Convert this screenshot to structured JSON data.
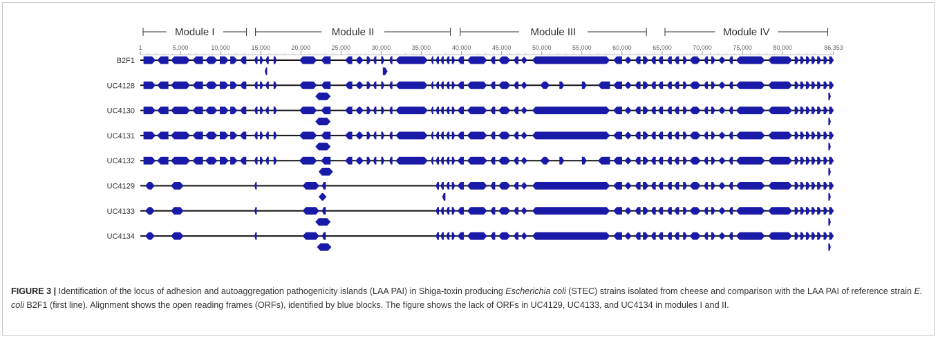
{
  "diagram": {
    "modules": [
      {
        "label": "Module I",
        "start": 1,
        "end": 13400
      },
      {
        "label": "Module II",
        "start": 14000,
        "end": 38800
      },
      {
        "label": "Module III",
        "start": 39500,
        "end": 63200
      },
      {
        "label": "Module IV",
        "start": 65000,
        "end": 85800
      }
    ],
    "axis": {
      "min": 1,
      "max": 86353,
      "ticks": [
        {
          "value": 1,
          "label": "1"
        },
        {
          "value": 5000,
          "label": "5,000"
        },
        {
          "value": 10000,
          "label": "10,000"
        },
        {
          "value": 15000,
          "label": "15,000"
        },
        {
          "value": 20000,
          "label": "20,000"
        },
        {
          "value": 25000,
          "label": "25,000"
        },
        {
          "value": 30000,
          "label": "30,000"
        },
        {
          "value": 35000,
          "label": "35,000"
        },
        {
          "value": 40000,
          "label": "40,000"
        },
        {
          "value": 45000,
          "label": "45,000"
        },
        {
          "value": 50000,
          "label": "50,000"
        },
        {
          "value": 55000,
          "label": "55,000"
        },
        {
          "value": 60000,
          "label": "60,000"
        },
        {
          "value": 65000,
          "label": "65,000"
        },
        {
          "value": 70000,
          "label": "70,000"
        },
        {
          "value": 75000,
          "label": "75,000"
        },
        {
          "value": 80000,
          "label": "80,000"
        },
        {
          "value": 86353,
          "label": "86,353"
        }
      ]
    },
    "orf_color": "#1a1aa8",
    "line_color": "#111111",
    "strains": [
      {
        "name": "B2F1",
        "line_start": 1,
        "mod1": "full",
        "mod2": "full",
        "gap_mod3": false,
        "extra": [
          [
            15500,
            15800,
            "l"
          ],
          [
            30200,
            30800,
            "r"
          ]
        ]
      },
      {
        "name": "UC4128",
        "line_start": 1,
        "mod1": "full",
        "mod2": "full",
        "gap_mod3": true,
        "extra": [
          [
            21800,
            23700,
            "b"
          ],
          [
            85700,
            86000,
            "r"
          ]
        ]
      },
      {
        "name": "UC4130",
        "line_start": 1,
        "mod1": "full",
        "mod2": "full",
        "gap_mod3": false,
        "extra": [
          [
            21800,
            23700,
            "b"
          ],
          [
            85700,
            86000,
            "r"
          ]
        ]
      },
      {
        "name": "UC4131",
        "line_start": 1,
        "mod1": "full",
        "mod2": "full",
        "gap_mod3": false,
        "extra": [
          [
            21800,
            23700,
            "b"
          ],
          [
            85700,
            86000,
            "r"
          ]
        ]
      },
      {
        "name": "UC4132",
        "line_start": 1,
        "mod1": "full",
        "mod2": "full",
        "gap_mod3": true,
        "extra": [
          [
            22200,
            24000,
            "b"
          ],
          [
            85700,
            86000,
            "r"
          ]
        ]
      },
      {
        "name": "UC4129",
        "line_start": 1,
        "mod1": "sparse",
        "mod2": "sparse",
        "gap_mod3": false,
        "extra": [
          [
            22200,
            23200,
            "b"
          ],
          [
            37600,
            38000,
            "l"
          ],
          [
            85700,
            86000,
            "r"
          ]
        ]
      },
      {
        "name": "UC4133",
        "line_start": 1,
        "mod1": "sparse",
        "mod2": "sparse",
        "gap_mod3": false,
        "extra": [
          [
            21800,
            23700,
            "b"
          ],
          [
            85700,
            86000,
            "r"
          ]
        ]
      },
      {
        "name": "UC4134",
        "line_start": 1,
        "mod1": "sparse",
        "mod2": "sparse",
        "gap_mod3": false,
        "extra": [
          [
            22000,
            23800,
            "b"
          ],
          [
            85700,
            86000,
            "r"
          ]
        ]
      }
    ]
  },
  "caption": {
    "figure_label": "FIGURE 3 |",
    "text_1": " Identification of the locus of adhesion and autoaggregation pathogenicity islands (LAA PAI) in Shiga-toxin producing ",
    "italic_1": "Escherichia coli",
    "text_2": " (STEC) strains isolated from cheese and comparison with the LAA PAI of reference strain ",
    "italic_2": "E. coli",
    "text_3": " B2F1 (first line). Alignment shows the open reading frames (ORFs), identified by blue blocks. The figure shows the lack of ORFs in UC4129, UC4133, and UC4134 in modules I and II."
  }
}
